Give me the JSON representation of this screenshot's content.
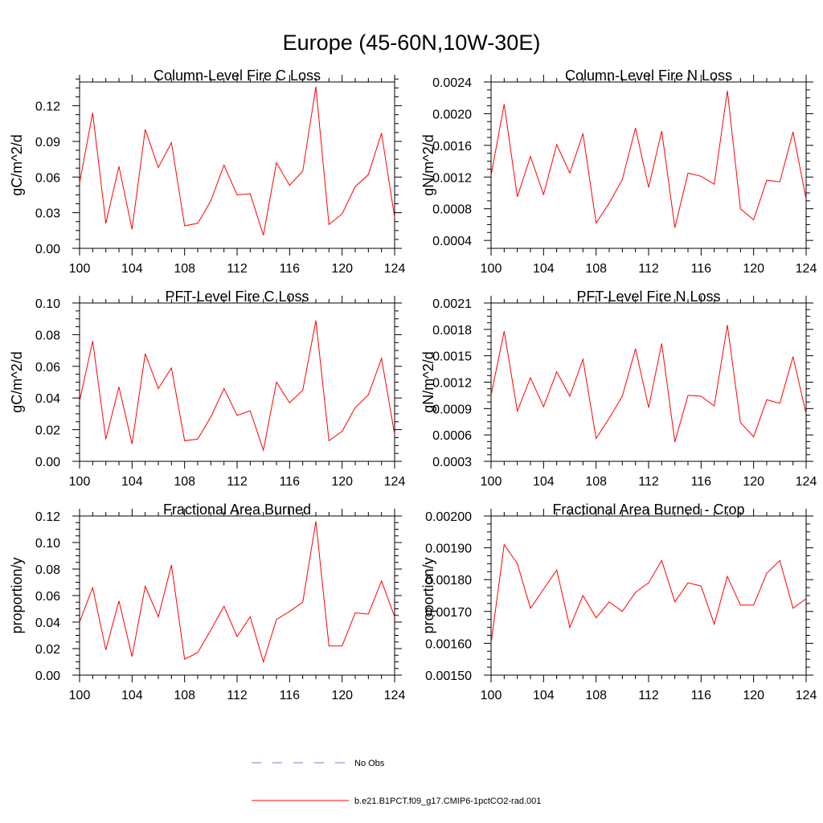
{
  "figure": {
    "title": "Europe (45-60N,10W-30E)"
  },
  "legend": {
    "entries": [
      {
        "label": "No Obs",
        "color": "#7b7bd6",
        "dashed": true
      },
      {
        "label": "b.e21.B1PCT.f09_g17.CMIP6-1pctCO2-rad.001",
        "color": "#ff0000",
        "dashed": false
      }
    ]
  },
  "chart_data": [
    {
      "type": "line",
      "title": "Column-Level Fire C Loss",
      "ylabel": "gC/m^2/d",
      "xlim": [
        100,
        124
      ],
      "ylim": [
        0.0,
        0.14
      ],
      "xticks": [
        100,
        104,
        108,
        112,
        116,
        120,
        124
      ],
      "yticks": [
        0.0,
        0.03,
        0.06,
        0.09,
        0.12
      ],
      "ytick_labels": [
        "0.00",
        "0.03",
        "0.06",
        "0.09",
        "0.12"
      ],
      "grid": false,
      "x": [
        100,
        101,
        102,
        103,
        104,
        105,
        106,
        107,
        108,
        109,
        110,
        111,
        112,
        113,
        114,
        115,
        116,
        117,
        118,
        119,
        120,
        121,
        122,
        123,
        124
      ],
      "series": [
        {
          "color": "#ff0000",
          "values": [
            0.055,
            0.114,
            0.021,
            0.069,
            0.016,
            0.1,
            0.068,
            0.089,
            0.019,
            0.021,
            0.04,
            0.07,
            0.045,
            0.046,
            0.011,
            0.072,
            0.053,
            0.065,
            0.136,
            0.02,
            0.029,
            0.052,
            0.062,
            0.097,
            0.026
          ]
        }
      ]
    },
    {
      "type": "line",
      "title": "Column-Level Fire N Loss",
      "ylabel": "gN/m^2/d",
      "xlim": [
        100,
        124
      ],
      "ylim": [
        0.0003,
        0.0024
      ],
      "xticks": [
        100,
        104,
        108,
        112,
        116,
        120,
        124
      ],
      "yticks": [
        0.0004,
        0.0008,
        0.0012,
        0.0016,
        0.002,
        0.0024
      ],
      "ytick_labels": [
        "0.0004",
        "0.0008",
        "0.0012",
        "0.0016",
        "0.0020",
        "0.0024"
      ],
      "grid": false,
      "x": [
        100,
        101,
        102,
        103,
        104,
        105,
        106,
        107,
        108,
        109,
        110,
        111,
        112,
        113,
        114,
        115,
        116,
        117,
        118,
        119,
        120,
        121,
        122,
        123,
        124
      ],
      "series": [
        {
          "color": "#ff0000",
          "values": [
            0.00122,
            0.00212,
            0.00095,
            0.00146,
            0.00098,
            0.00161,
            0.00125,
            0.00175,
            0.00062,
            0.00087,
            0.00117,
            0.00182,
            0.00107,
            0.00178,
            0.00056,
            0.00125,
            0.00121,
            0.00111,
            0.00229,
            0.0008,
            0.00066,
            0.00116,
            0.00114,
            0.00177,
            0.00092
          ]
        }
      ]
    },
    {
      "type": "line",
      "title": "PFT-Level Fire C Loss",
      "ylabel": "gC/m^2/d",
      "xlim": [
        100,
        124
      ],
      "ylim": [
        0.0,
        0.1
      ],
      "xticks": [
        100,
        104,
        108,
        112,
        116,
        120,
        124
      ],
      "yticks": [
        0.0,
        0.02,
        0.04,
        0.06,
        0.08,
        0.1
      ],
      "ytick_labels": [
        "0.00",
        "0.02",
        "0.04",
        "0.06",
        "0.08",
        "0.10"
      ],
      "grid": false,
      "x": [
        100,
        101,
        102,
        103,
        104,
        105,
        106,
        107,
        108,
        109,
        110,
        111,
        112,
        113,
        114,
        115,
        116,
        117,
        118,
        119,
        120,
        121,
        122,
        123,
        124
      ],
      "series": [
        {
          "color": "#ff0000",
          "values": [
            0.038,
            0.076,
            0.014,
            0.047,
            0.011,
            0.068,
            0.046,
            0.059,
            0.013,
            0.014,
            0.028,
            0.046,
            0.029,
            0.032,
            0.007,
            0.05,
            0.037,
            0.045,
            0.089,
            0.013,
            0.019,
            0.034,
            0.042,
            0.065,
            0.017
          ]
        }
      ]
    },
    {
      "type": "line",
      "title": "PFT-Level Fire N Loss",
      "ylabel": "gN/m^2/d",
      "xlim": [
        100,
        124
      ],
      "ylim": [
        0.0003,
        0.0021
      ],
      "xticks": [
        100,
        104,
        108,
        112,
        116,
        120,
        124
      ],
      "yticks": [
        0.0003,
        0.0006,
        0.0009,
        0.0012,
        0.0015,
        0.0018,
        0.0021
      ],
      "ytick_labels": [
        "0.0003",
        "0.0006",
        "0.0009",
        "0.0012",
        "0.0015",
        "0.0018",
        "0.0021"
      ],
      "grid": false,
      "x": [
        100,
        101,
        102,
        103,
        104,
        105,
        106,
        107,
        108,
        109,
        110,
        111,
        112,
        113,
        114,
        115,
        116,
        117,
        118,
        119,
        120,
        121,
        122,
        123,
        124
      ],
      "series": [
        {
          "color": "#ff0000",
          "values": [
            0.00105,
            0.00178,
            0.00087,
            0.00125,
            0.00092,
            0.00132,
            0.00104,
            0.00146,
            0.00056,
            0.00079,
            0.00104,
            0.00158,
            0.00091,
            0.00164,
            0.00052,
            0.00105,
            0.00104,
            0.00093,
            0.00185,
            0.00074,
            0.00058,
            0.001,
            0.00096,
            0.00149,
            0.00084
          ]
        }
      ]
    },
    {
      "type": "line",
      "title": "Fractional Area Burned",
      "ylabel": "proportion/y",
      "xlim": [
        100,
        124
      ],
      "ylim": [
        0.0,
        0.12
      ],
      "xticks": [
        100,
        104,
        108,
        112,
        116,
        120,
        124
      ],
      "yticks": [
        0.0,
        0.02,
        0.04,
        0.06,
        0.08,
        0.1,
        0.12
      ],
      "ytick_labels": [
        "0.00",
        "0.02",
        "0.04",
        "0.06",
        "0.08",
        "0.10",
        "0.12"
      ],
      "grid": false,
      "x": [
        100,
        101,
        102,
        103,
        104,
        105,
        106,
        107,
        108,
        109,
        110,
        111,
        112,
        113,
        114,
        115,
        116,
        117,
        118,
        119,
        120,
        121,
        122,
        123,
        124
      ],
      "series": [
        {
          "color": "#ff0000",
          "values": [
            0.04,
            0.066,
            0.019,
            0.056,
            0.014,
            0.067,
            0.044,
            0.083,
            0.012,
            0.017,
            0.034,
            0.052,
            0.029,
            0.044,
            0.01,
            0.042,
            0.048,
            0.055,
            0.116,
            0.022,
            0.022,
            0.047,
            0.046,
            0.071,
            0.044
          ]
        }
      ]
    },
    {
      "type": "line",
      "title": "Fractional Area Burned - Crop",
      "ylabel": "proportion/y",
      "xlim": [
        100,
        124
      ],
      "ylim": [
        0.0015,
        0.002
      ],
      "xticks": [
        100,
        104,
        108,
        112,
        116,
        120,
        124
      ],
      "yticks": [
        0.0015,
        0.0016,
        0.0017,
        0.0018,
        0.0019,
        0.002
      ],
      "ytick_labels": [
        "0.00150",
        "0.00160",
        "0.00170",
        "0.00180",
        "0.00190",
        "0.00200"
      ],
      "grid": false,
      "x": [
        100,
        101,
        102,
        103,
        104,
        105,
        106,
        107,
        108,
        109,
        110,
        111,
        112,
        113,
        114,
        115,
        116,
        117,
        118,
        119,
        120,
        121,
        122,
        123,
        124
      ],
      "series": [
        {
          "color": "#ff0000",
          "values": [
            0.0016,
            0.00191,
            0.00185,
            0.00171,
            0.00177,
            0.00183,
            0.00165,
            0.00175,
            0.00168,
            0.00173,
            0.0017,
            0.00176,
            0.00179,
            0.00186,
            0.00173,
            0.00179,
            0.00178,
            0.00166,
            0.00181,
            0.00172,
            0.00172,
            0.00182,
            0.00186,
            0.00171,
            0.00174
          ]
        }
      ]
    }
  ]
}
